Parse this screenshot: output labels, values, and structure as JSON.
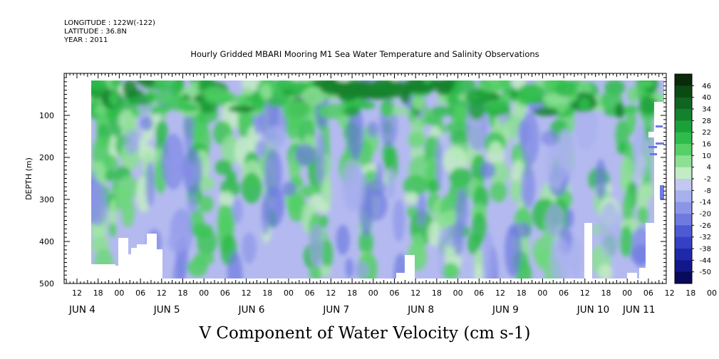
{
  "header": {
    "longitude": "LONGITUDE : 122W(-122)",
    "latitude": "LATITUDE : 36.8N",
    "year": "YEAR : 2011"
  },
  "chart_data": {
    "type": "heatmap",
    "title": "Hourly Gridded MBARI Mooring M1 Sea Water Temperature and Salinity Observations",
    "ylabel": "DEPTH (m)",
    "xlabel": "V Component of Water Velocity (cm s-1)",
    "ylim": [
      500,
      0
    ],
    "yticks": [
      "100",
      "200",
      "300",
      "400",
      "500"
    ],
    "x_tick_labels": [
      "12",
      "18",
      "00",
      "06",
      "12",
      "18",
      "00",
      "06",
      "12",
      "18",
      "00",
      "06",
      "12",
      "18",
      "00",
      "06",
      "12",
      "18",
      "00",
      "06",
      "12",
      "18",
      "00",
      "06",
      "12",
      "18",
      "00",
      "06",
      "12",
      "18",
      "00",
      "06"
    ],
    "x_date_labels": [
      "JUN  4",
      "JUN  5",
      "JUN  6",
      "JUN  7",
      "JUN  8",
      "JUN  9",
      "JUN 10",
      "JUN 11"
    ],
    "time_range": [
      "2011-06-04 12:00",
      "2011-06-11 09:00"
    ],
    "depth_range": [
      20,
      485
    ],
    "colorbar": {
      "labels": [
        "46",
        "40",
        "34",
        "28",
        "22",
        "16",
        "10",
        "4",
        "-2",
        "-8",
        "-14",
        "-20",
        "-26",
        "-32",
        "-38",
        "-44",
        "-50"
      ],
      "colors": [
        "#0a2a0a",
        "#0c4a14",
        "#0f6420",
        "#14822c",
        "#1ca03a",
        "#2ebc4a",
        "#56d066",
        "#8ce094",
        "#c2ecc4",
        "#c2c8f0",
        "#a8b0ee",
        "#8c96e8",
        "#6e7ae0",
        "#4e5ad4",
        "#3640c4",
        "#2028aa",
        "#10188a",
        "#080a5a"
      ]
    },
    "grid": false,
    "legend": "right colorbar"
  }
}
